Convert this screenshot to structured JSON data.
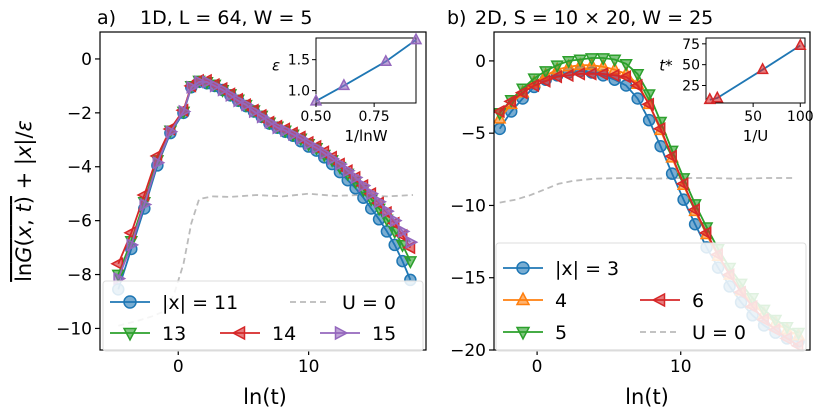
{
  "chart_data": [
    {
      "type": "line",
      "panel": "a)",
      "title": "1D, L = 64, W = 5",
      "xlabel": "ln(t)",
      "ylabel": "ln G(x,t) + |x|/ε",
      "xlim": [
        -6,
        19
      ],
      "ylim": [
        -10.8,
        1.0
      ],
      "xticks": [
        0,
        10
      ],
      "yticks": [
        0,
        -2,
        -4,
        -6,
        -8,
        -10
      ],
      "x": [
        -4.6,
        -3.6,
        -2.6,
        -1.6,
        -0.6,
        0.4,
        1.0,
        1.6,
        2.2,
        2.8,
        3.4,
        4.0,
        4.6,
        5.2,
        5.8,
        6.4,
        7.0,
        7.6,
        8.2,
        8.8,
        9.4,
        10.0,
        10.6,
        11.2,
        11.8,
        12.4,
        13.0,
        13.6,
        14.2,
        14.8,
        15.4,
        16.0,
        16.6,
        17.2,
        17.8
      ],
      "series": [
        {
          "name": "|x| = 11",
          "color": "#1f77b4",
          "marker": "circle",
          "values": [
            -8.55,
            -7.05,
            -5.55,
            -3.95,
            -2.75,
            -2.0,
            -1.05,
            -0.85,
            -0.9,
            -1.0,
            -1.15,
            -1.35,
            -1.55,
            -1.75,
            -1.95,
            -2.15,
            -2.4,
            -2.55,
            -2.7,
            -2.85,
            -3.05,
            -3.25,
            -3.4,
            -3.65,
            -3.9,
            -4.2,
            -4.5,
            -4.8,
            -5.15,
            -5.55,
            -5.95,
            -6.4,
            -6.9,
            -7.5,
            -8.2
          ]
        },
        {
          "name": "13",
          "color": "#2ca02c",
          "marker": "triangle-down",
          "values": [
            -8.0,
            -6.75,
            -5.3,
            -3.75,
            -2.65,
            -1.95,
            -1.0,
            -0.8,
            -0.85,
            -0.95,
            -1.15,
            -1.3,
            -1.5,
            -1.7,
            -1.9,
            -2.1,
            -2.35,
            -2.5,
            -2.65,
            -2.8,
            -2.95,
            -3.15,
            -3.3,
            -3.55,
            -3.75,
            -4.0,
            -4.25,
            -4.55,
            -4.85,
            -5.2,
            -5.55,
            -5.95,
            -6.4,
            -6.9,
            -7.5
          ]
        },
        {
          "name": "14",
          "color": "#d62728",
          "marker": "triangle-left",
          "values": [
            -7.6,
            -6.45,
            -5.05,
            -3.6,
            -2.6,
            -1.9,
            -1.0,
            -0.8,
            -0.8,
            -0.95,
            -1.1,
            -1.3,
            -1.5,
            -1.7,
            -1.9,
            -2.1,
            -2.35,
            -2.5,
            -2.6,
            -2.75,
            -2.9,
            -3.1,
            -3.25,
            -3.45,
            -3.65,
            -3.9,
            -4.15,
            -4.4,
            -4.7,
            -5.0,
            -5.35,
            -5.7,
            -6.1,
            -6.55,
            -7.0
          ]
        },
        {
          "name": "15",
          "color": "#9467bd",
          "marker": "triangle-right",
          "values": [
            -8.15,
            -6.9,
            -5.4,
            -3.85,
            -2.7,
            -1.95,
            -1.05,
            -0.85,
            -0.85,
            -1.0,
            -1.15,
            -1.35,
            -1.55,
            -1.7,
            -1.95,
            -2.15,
            -2.35,
            -2.55,
            -2.65,
            -2.8,
            -2.95,
            -3.15,
            -3.3,
            -3.5,
            -3.7,
            -3.9,
            -4.15,
            -4.4,
            -4.7,
            -5.0,
            -5.3,
            -5.65,
            -6.0,
            -6.4,
            -6.8
          ]
        }
      ],
      "reference": {
        "name": "U = 0",
        "color": "#bbbbbb",
        "style": "dashed",
        "x": [
          -4.6,
          -3.0,
          -2.0,
          -1.0,
          -0.3,
          0.4,
          1.0,
          1.6,
          2.6,
          4.0,
          6.0,
          8.0,
          10.0,
          12.0,
          14.0,
          16.0,
          18.0
        ],
        "values": [
          -9.9,
          -9.7,
          -9.55,
          -9.35,
          -8.7,
          -7.6,
          -6.1,
          -5.2,
          -5.1,
          -5.12,
          -5.05,
          -5.1,
          -5.0,
          -5.08,
          -5.05,
          -5.1,
          -5.05
        ]
      },
      "legend": {
        "position": "lower-left",
        "columns": 3
      },
      "inset": {
        "type": "line",
        "position": "top-right",
        "xlabel": "1/lnW",
        "ylabel": "ε",
        "xticks": [
          "0.50",
          "0.75"
        ],
        "yticks": [
          "1.0",
          "1.5"
        ],
        "xlim": [
          0.5,
          0.93
        ],
        "ylim": [
          0.8,
          1.85
        ],
        "x": [
          0.5,
          0.62,
          0.8,
          0.93
        ],
        "values": [
          0.83,
          1.08,
          1.47,
          1.82
        ],
        "color": "#9467bd",
        "line_color": "#1f77b4",
        "marker": "triangle-up"
      }
    },
    {
      "type": "line",
      "panel": "b)",
      "title": "2D, S = 10 × 20, W = 25",
      "xlabel": "ln(t)",
      "ylabel": "",
      "xlim": [
        -3,
        19
      ],
      "ylim": [
        -20,
        2
      ],
      "xticks": [
        0,
        10
      ],
      "yticks": [
        0,
        -5,
        -10,
        -15,
        -20
      ],
      "x": [
        -2.6,
        -1.8,
        -1.0,
        -0.2,
        0.6,
        1.4,
        2.2,
        3.0,
        3.8,
        4.6,
        5.4,
        6.2,
        7.0,
        7.8,
        8.6,
        9.4,
        10.2,
        11.0,
        11.8,
        12.6,
        13.4,
        14.2,
        15.0,
        15.8,
        16.6,
        17.4,
        18.2
      ],
      "series": [
        {
          "name": "|x| = 3",
          "color": "#1f77b4",
          "marker": "circle",
          "values": [
            -4.7,
            -3.5,
            -2.6,
            -1.8,
            -1.3,
            -1.0,
            -0.8,
            -0.7,
            -0.8,
            -1.0,
            -1.3,
            -1.7,
            -2.6,
            -4.1,
            -5.9,
            -7.8,
            -9.6,
            -11.3,
            -12.9,
            -14.3,
            -15.6,
            -16.7,
            -17.6,
            -18.3,
            -18.8,
            -19.2,
            -19.4
          ]
        },
        {
          "name": "4",
          "color": "#ff7f0e",
          "marker": "triangle-up",
          "values": [
            -4.0,
            -3.0,
            -2.2,
            -1.5,
            -1.0,
            -0.6,
            -0.4,
            -0.3,
            -0.3,
            -0.4,
            -0.6,
            -0.9,
            -1.6,
            -3.0,
            -4.8,
            -6.7,
            -8.6,
            -10.4,
            -12.0,
            -13.5,
            -14.8,
            -15.9,
            -16.8,
            -17.5,
            -18.1,
            -18.6,
            -19.0
          ]
        },
        {
          "name": "5",
          "color": "#2ca02c",
          "marker": "triangle-down",
          "values": [
            -3.6,
            -2.7,
            -1.9,
            -1.2,
            -0.7,
            -0.3,
            0.0,
            0.1,
            0.2,
            0.2,
            0.1,
            -0.2,
            -0.9,
            -2.3,
            -4.2,
            -6.2,
            -8.1,
            -9.9,
            -11.5,
            -13.0,
            -14.3,
            -15.4,
            -16.4,
            -17.2,
            -17.9,
            -18.4,
            -18.8
          ]
        },
        {
          "name": "6",
          "color": "#d62728",
          "marker": "triangle-left",
          "values": [
            -3.5,
            -2.8,
            -2.2,
            -1.7,
            -1.4,
            -1.1,
            -1.0,
            -0.9,
            -0.9,
            -0.9,
            -1.0,
            -1.1,
            -1.7,
            -3.0,
            -4.7,
            -6.6,
            -8.5,
            -10.3,
            -11.9,
            -13.4,
            -14.8,
            -16.0,
            -17.0,
            -17.9,
            -18.6,
            -19.2,
            -19.7
          ]
        }
      ],
      "reference": {
        "name": "U = 0",
        "color": "#bbbbbb",
        "style": "dashed",
        "x": [
          -2.6,
          -1.5,
          -0.5,
          0.5,
          1.5,
          2.5,
          4.0,
          6.0,
          8.0,
          10.0,
          12.0,
          14.0,
          16.0,
          18.0
        ],
        "values": [
          -9.8,
          -9.6,
          -9.3,
          -8.9,
          -8.5,
          -8.3,
          -8.15,
          -8.1,
          -8.15,
          -8.1,
          -8.1,
          -8.15,
          -8.1,
          -8.1
        ]
      },
      "legend": {
        "position": "lower-left",
        "columns": 2
      },
      "inset": {
        "type": "line",
        "position": "top-right",
        "xlabel": "1/U",
        "ylabel": "t*",
        "xticks": [
          "50",
          "100"
        ],
        "yticks": [
          "25",
          "50",
          "75"
        ],
        "xlim": [
          0,
          105
        ],
        "ylim": [
          4,
          82
        ],
        "x": [
          4,
          12,
          60,
          100
        ],
        "values": [
          8,
          10,
          44,
          73
        ],
        "color": "#d62728",
        "line_color": "#1f77b4",
        "marker": "triangle-up"
      }
    }
  ]
}
